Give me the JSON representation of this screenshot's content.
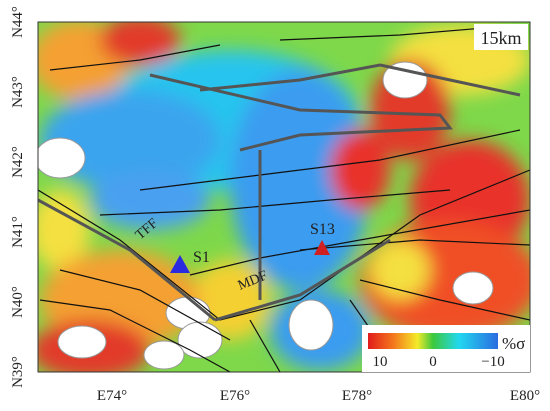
{
  "map": {
    "label": "15km",
    "lat_labels": [
      "N44°",
      "N43°",
      "N42°",
      "N41°",
      "N40°",
      "N39°"
    ],
    "lon_labels": [
      "E74°",
      "E76°",
      "E78°",
      "E80°"
    ],
    "faults": [
      "TFF",
      "MDF"
    ],
    "stations": [
      "S1",
      "S13"
    ],
    "colorbar": {
      "unit": "%σ",
      "labels": [
        "10",
        "0",
        "−10"
      ]
    }
  }
}
